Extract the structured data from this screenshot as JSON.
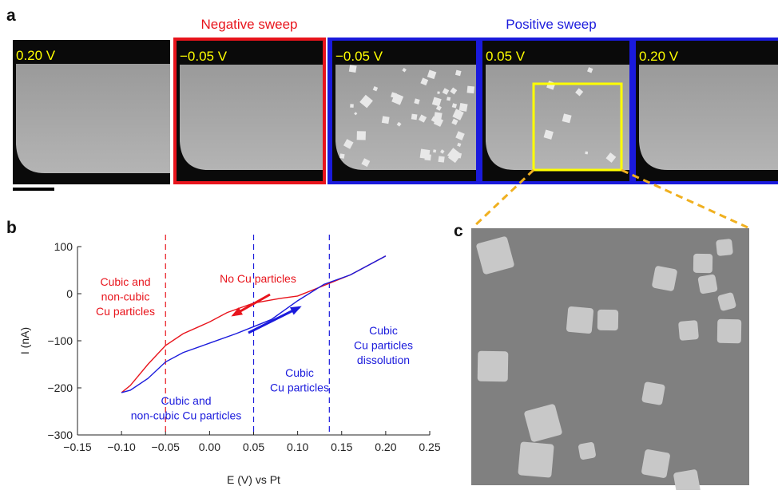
{
  "panels": {
    "a": {
      "label": "a",
      "negative_label": "Negative sweep",
      "positive_label": "Positive sweep",
      "images": [
        {
          "label": "0.20 V"
        },
        {
          "label": "−0.05 V"
        },
        {
          "label": "−0.05 V"
        },
        {
          "label": "0.05 V"
        },
        {
          "label": "0.20 V"
        }
      ]
    },
    "b": {
      "label": "b"
    },
    "c": {
      "label": "c"
    }
  },
  "chart_data": {
    "type": "line",
    "x_label": "E (V) vs Pt",
    "y_label": "I (nA)",
    "xlim": [
      -0.15,
      0.25
    ],
    "ylim": [
      -300,
      100
    ],
    "xticks": [
      {
        "value": -0.15,
        "label": "−0.15"
      },
      {
        "value": -0.1,
        "label": "−0.10"
      },
      {
        "value": -0.05,
        "label": "−0.05"
      },
      {
        "value": 0,
        "label": "0.00"
      },
      {
        "value": 0.05,
        "label": "0.05"
      },
      {
        "value": 0.1,
        "label": "0.10"
      },
      {
        "value": 0.15,
        "label": "0.15"
      },
      {
        "value": 0.2,
        "label": "0.20"
      },
      0.25
    ],
    "yticks": [
      {
        "value": -300,
        "label": "−300"
      },
      {
        "value": -200,
        "label": "−200"
      },
      {
        "value": -100,
        "label": "−100"
      },
      0,
      100
    ],
    "series": [
      {
        "color": "#e8141c",
        "x": [
          0.2,
          0.16,
          0.12,
          0.1,
          0.08,
          0.05,
          0.02,
          0.0,
          -0.03,
          -0.05,
          -0.07,
          -0.09,
          -0.1
        ],
        "values": [
          80,
          40,
          10,
          -5,
          -10,
          -20,
          -40,
          -60,
          -85,
          -110,
          -150,
          -195,
          -210
        ]
      },
      {
        "color": "#1a1adc",
        "x": [
          -0.1,
          -0.09,
          -0.07,
          -0.05,
          -0.03,
          0.0,
          0.03,
          0.05,
          0.07,
          0.1,
          0.13,
          0.16,
          0.2
        ],
        "values": [
          -210,
          -205,
          -180,
          -145,
          -125,
          -105,
          -85,
          -70,
          -55,
          -15,
          20,
          40,
          80
        ]
      }
    ],
    "reference_lines": [
      {
        "x": -0.05,
        "color": "#e8141c"
      },
      {
        "x": 0.05,
        "color": "#1a1adc"
      },
      {
        "x": 0.136,
        "color": "#1a1adc"
      }
    ],
    "annotations": [
      {
        "lines": [
          "Cubic and",
          "non-cubic",
          "Cu particles"
        ],
        "color": "#e8141c"
      },
      {
        "lines": [
          "No Cu particles"
        ],
        "color": "#e8141c"
      },
      {
        "lines": [
          "Cubic",
          "Cu particles"
        ],
        "color": "#1a1adc"
      },
      {
        "lines": [
          "Cubic",
          "Cu particles",
          "dissolution"
        ],
        "color": "#1a1adc"
      },
      {
        "lines": [
          "Cubic and",
          "non-cubic Cu particles"
        ],
        "color": "#1a1adc"
      }
    ]
  }
}
